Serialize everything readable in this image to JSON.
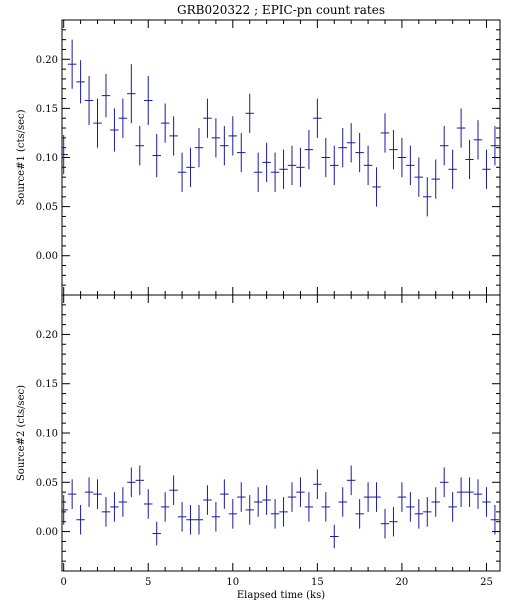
{
  "title": "GRB020322 ; EPIC-pn count rates",
  "chart_data": [
    {
      "type": "scatter",
      "ylabel": "Source#1 (cts/sec)",
      "xlim": [
        -0.1,
        25.8
      ],
      "ylim": [
        -0.04,
        0.24
      ],
      "xticks": [
        0,
        5,
        10,
        15,
        20,
        25
      ],
      "yticks": [
        "0.00",
        "0.05",
        "0.10",
        "0.15",
        "0.20"
      ],
      "xerr": 0.25,
      "x": [
        0.0,
        0.5,
        1.0,
        1.5,
        2.0,
        2.5,
        3.0,
        3.5,
        4.0,
        4.5,
        5.0,
        5.5,
        6.0,
        6.5,
        7.0,
        7.5,
        8.0,
        8.5,
        9.0,
        9.5,
        10.0,
        10.5,
        11.0,
        11.5,
        12.0,
        12.5,
        13.0,
        13.5,
        14.0,
        14.5,
        15.0,
        15.5,
        16.0,
        16.5,
        17.0,
        17.5,
        18.0,
        18.5,
        19.0,
        19.5,
        20.0,
        20.5,
        21.0,
        21.5,
        22.0,
        22.5,
        23.0,
        23.5,
        24.0,
        24.5,
        25.0,
        25.5
      ],
      "y": [
        0.103,
        0.195,
        0.177,
        0.158,
        0.135,
        0.163,
        0.128,
        0.14,
        0.165,
        0.112,
        0.158,
        0.102,
        0.135,
        0.122,
        0.085,
        0.09,
        0.11,
        0.14,
        0.12,
        0.112,
        0.122,
        0.105,
        0.145,
        0.085,
        0.095,
        0.085,
        0.088,
        0.092,
        0.09,
        0.108,
        0.14,
        0.1,
        0.092,
        0.11,
        0.115,
        0.105,
        0.092,
        0.07,
        0.125,
        0.108,
        0.1,
        0.092,
        0.08,
        0.06,
        0.078,
        0.112,
        0.088,
        0.13,
        0.098,
        0.118,
        0.088,
        0.112
      ],
      "yerr": [
        0.02,
        0.025,
        0.022,
        0.025,
        0.025,
        0.022,
        0.022,
        0.02,
        0.03,
        0.02,
        0.025,
        0.022,
        0.02,
        0.02,
        0.02,
        0.02,
        0.02,
        0.02,
        0.02,
        0.02,
        0.02,
        0.02,
        0.02,
        0.02,
        0.02,
        0.02,
        0.02,
        0.02,
        0.02,
        0.02,
        0.02,
        0.02,
        0.02,
        0.02,
        0.02,
        0.02,
        0.02,
        0.02,
        0.02,
        0.02,
        0.02,
        0.02,
        0.02,
        0.02,
        0.02,
        0.02,
        0.02,
        0.02,
        0.02,
        0.02,
        0.02,
        0.02
      ]
    },
    {
      "type": "scatter",
      "ylabel": "Source#2 (cts/sec)",
      "xlabel": "Elapsed time (ks)",
      "xlim": [
        -0.1,
        25.8
      ],
      "ylim": [
        -0.04,
        0.24
      ],
      "xticks": [
        0,
        5,
        10,
        15,
        20,
        25
      ],
      "yticks": [
        "0.00",
        "0.05",
        "0.10",
        "0.15",
        "0.20"
      ],
      "xerr": 0.25,
      "x": [
        0.0,
        0.5,
        1.0,
        1.5,
        2.0,
        2.5,
        3.0,
        3.5,
        4.0,
        4.5,
        5.0,
        5.5,
        6.0,
        6.5,
        7.0,
        7.5,
        8.0,
        8.5,
        9.0,
        9.5,
        10.0,
        10.5,
        11.0,
        11.5,
        12.0,
        12.5,
        13.0,
        13.5,
        14.0,
        14.5,
        15.0,
        15.5,
        16.0,
        16.5,
        17.0,
        17.5,
        18.0,
        18.5,
        19.0,
        19.5,
        20.0,
        20.5,
        21.0,
        21.5,
        22.0,
        22.5,
        23.0,
        23.5,
        24.0,
        24.5,
        25.0,
        25.5
      ],
      "y": [
        0.022,
        0.038,
        0.012,
        0.04,
        0.038,
        0.02,
        0.025,
        0.03,
        0.05,
        0.052,
        0.028,
        -0.002,
        0.025,
        0.042,
        0.015,
        0.012,
        0.012,
        0.032,
        0.015,
        0.038,
        0.018,
        0.035,
        0.022,
        0.03,
        0.032,
        0.018,
        0.02,
        0.035,
        0.04,
        0.025,
        0.048,
        0.025,
        -0.005,
        0.03,
        0.052,
        0.018,
        0.035,
        0.035,
        0.008,
        0.01,
        0.035,
        0.025,
        0.018,
        0.02,
        0.03,
        0.05,
        0.025,
        0.04,
        0.04,
        0.038,
        0.03,
        0.012
      ],
      "yerr": [
        0.015,
        0.015,
        0.015,
        0.015,
        0.015,
        0.015,
        0.015,
        0.015,
        0.015,
        0.015,
        0.015,
        0.012,
        0.015,
        0.015,
        0.015,
        0.015,
        0.015,
        0.015,
        0.015,
        0.015,
        0.015,
        0.015,
        0.015,
        0.015,
        0.015,
        0.015,
        0.015,
        0.015,
        0.015,
        0.015,
        0.015,
        0.015,
        0.012,
        0.015,
        0.015,
        0.015,
        0.015,
        0.015,
        0.015,
        0.015,
        0.015,
        0.015,
        0.015,
        0.015,
        0.015,
        0.015,
        0.015,
        0.015,
        0.015,
        0.015,
        0.015,
        0.015
      ]
    }
  ]
}
